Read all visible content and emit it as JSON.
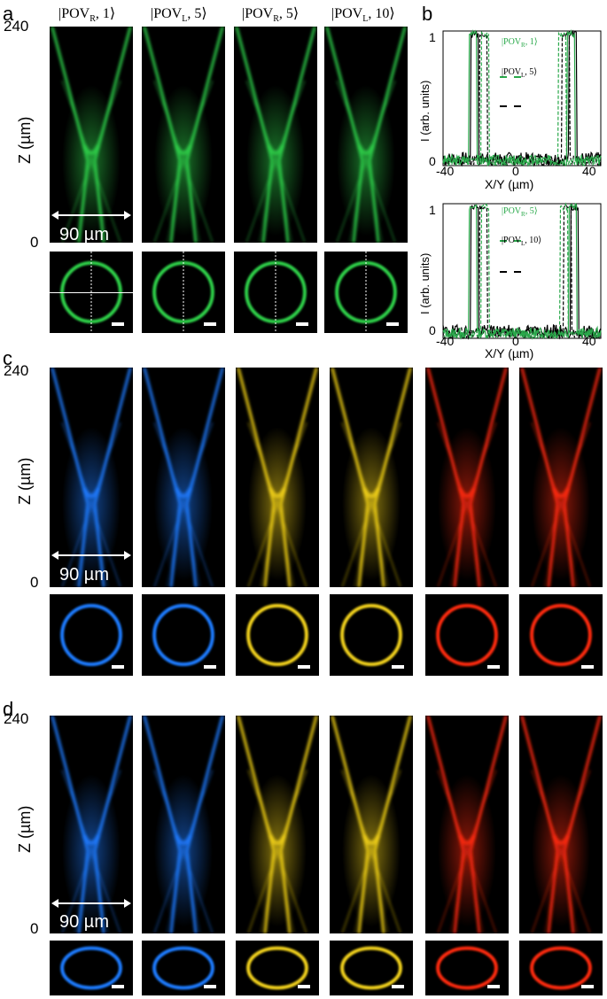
{
  "panels": {
    "a": {
      "letter": "a"
    },
    "b": {
      "letter": "b"
    },
    "c": {
      "letter": "c"
    },
    "d": {
      "letter": "d"
    }
  },
  "z_axis": {
    "label": "Z (µm)",
    "top": "240",
    "bottom": "0"
  },
  "scale_label": "90 µm",
  "kets": [
    {
      "pre": "|POV",
      "sub": "R",
      "post": ", 1⟩"
    },
    {
      "pre": "|POV",
      "sub": "L",
      "post": ", 5⟩"
    },
    {
      "pre": "|POV",
      "sub": "R",
      "post": ", 5⟩"
    },
    {
      "pre": "|POV",
      "sub": "L",
      "post": ", 10⟩"
    }
  ],
  "colors": {
    "green": "#2fd14a",
    "blue": "#1f7bff",
    "yellow": "#f2d21a",
    "red": "#ff2a10",
    "legend_green": "#29a84a"
  },
  "plot": {
    "ylabel": "I (arb. units)",
    "xlabel": "X/Y (µm)",
    "ytick_top": "1",
    "ytick_bottom": "0",
    "xticks": [
      "-40",
      "0",
      "40"
    ],
    "top_legend": [
      {
        "pre": "|POV",
        "sub": "R",
        "post": ", 1⟩"
      },
      {
        "pre": "|POV",
        "sub": "L",
        "post": ", 5⟩"
      }
    ],
    "bottom_legend": [
      {
        "pre": "|POV",
        "sub": "R",
        "post": ", 5⟩"
      },
      {
        "pre": "|POV",
        "sub": "L",
        "post": ", 10⟩"
      }
    ]
  }
}
